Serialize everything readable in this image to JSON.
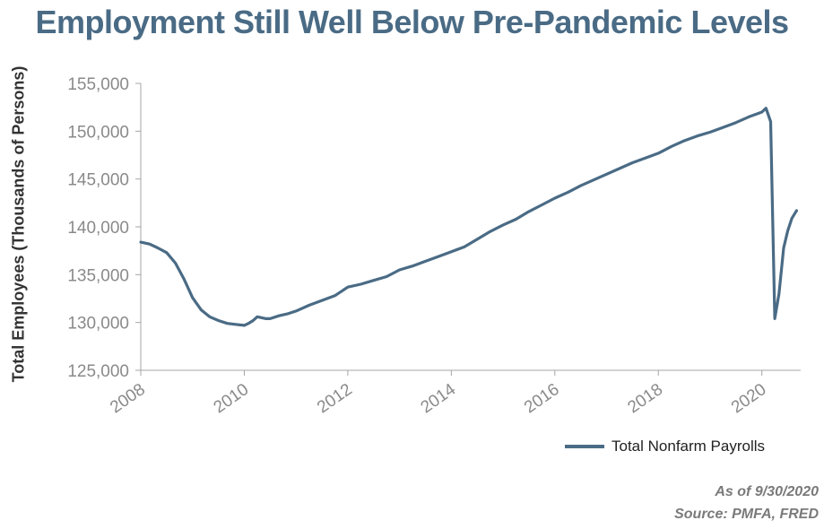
{
  "title": "Employment Still Well Below Pre-Pandemic Levels",
  "note_date": "As of 9/30/2020",
  "note_source": "Source: PMFA, FRED",
  "chart_data": {
    "type": "line",
    "ylabel": "Total Employees (Thousands of Persons)",
    "xlabel": "",
    "xlim": [
      2008,
      2020.75
    ],
    "ylim": [
      125000,
      155000
    ],
    "x_ticks": [
      2008,
      2010,
      2012,
      2014,
      2016,
      2018,
      2020
    ],
    "x_tick_labels": [
      "2008",
      "2010",
      "2012",
      "2014",
      "2016",
      "2018",
      "2020"
    ],
    "y_ticks": [
      125000,
      130000,
      135000,
      140000,
      145000,
      150000,
      155000
    ],
    "y_tick_labels": [
      "125,000",
      "130,000",
      "135,000",
      "140,000",
      "145,000",
      "150,000",
      "155,000"
    ],
    "grid": false,
    "legend_position": "bottom-right",
    "series": [
      {
        "name": "Total Nonfarm Payrolls",
        "color": "#4a6b85",
        "x": [
          2008.0,
          2008.17,
          2008.33,
          2008.5,
          2008.67,
          2008.83,
          2009.0,
          2009.17,
          2009.33,
          2009.5,
          2009.67,
          2009.83,
          2010.0,
          2010.08,
          2010.17,
          2010.25,
          2010.33,
          2010.42,
          2010.5,
          2010.67,
          2010.83,
          2011.0,
          2011.25,
          2011.5,
          2011.75,
          2012.0,
          2012.25,
          2012.5,
          2012.75,
          2013.0,
          2013.25,
          2013.5,
          2013.75,
          2014.0,
          2014.25,
          2014.5,
          2014.75,
          2015.0,
          2015.25,
          2015.5,
          2015.75,
          2016.0,
          2016.25,
          2016.5,
          2016.75,
          2017.0,
          2017.25,
          2017.5,
          2017.75,
          2018.0,
          2018.25,
          2018.5,
          2018.75,
          2019.0,
          2019.25,
          2019.5,
          2019.75,
          2020.0,
          2020.08,
          2020.17,
          2020.25,
          2020.33,
          2020.42,
          2020.5,
          2020.58,
          2020.67
        ],
        "values": [
          138400,
          138200,
          137800,
          137300,
          136200,
          134600,
          132600,
          131300,
          130600,
          130200,
          129900,
          129800,
          129700,
          129900,
          130200,
          130600,
          130500,
          130400,
          130400,
          130700,
          130900,
          131200,
          131800,
          132300,
          132800,
          133700,
          134000,
          134400,
          134800,
          135500,
          135900,
          136400,
          136900,
          137400,
          137900,
          138700,
          139500,
          140200,
          140800,
          141600,
          142300,
          143000,
          143600,
          144300,
          144900,
          145500,
          146100,
          146700,
          147200,
          147700,
          148400,
          149000,
          149500,
          149900,
          150400,
          150900,
          151500,
          152000,
          152400,
          151000,
          130400,
          133000,
          137800,
          139600,
          140900,
          141700
        ]
      }
    ]
  }
}
